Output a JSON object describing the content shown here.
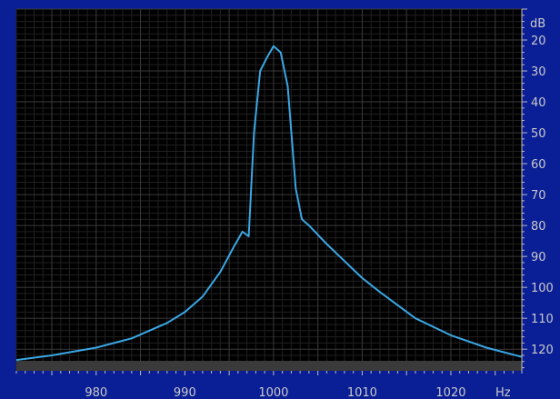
{
  "chart_data": {
    "type": "line",
    "title": "",
    "xlabel": "Hz",
    "ylabel": "dB",
    "x_unit": "Hz",
    "y_unit": "dB",
    "xlim": [
      971,
      1028
    ],
    "ylim": [
      10,
      127
    ],
    "y_inverted": true,
    "x_ticks": [
      980,
      990,
      1000,
      1010,
      1020
    ],
    "y_ticks": [
      20,
      30,
      40,
      50,
      60,
      70,
      80,
      90,
      100,
      110,
      120
    ],
    "grid": true,
    "colors": {
      "background": "#0a1f96",
      "plot_background": "#000000",
      "grid": "#3b3b3b",
      "line": "#3aa7e4",
      "text": "#c9c9c9"
    },
    "series": [
      {
        "x": [
          971,
          975,
          980,
          984,
          988,
          990,
          992,
          994,
          995.5,
          996.5,
          997.2,
          997.8,
          998.5,
          999.2,
          1000,
          1000.8,
          1001.6,
          1002.5,
          1003.2,
          1004,
          1006,
          1008,
          1010,
          1012,
          1016,
          1020,
          1024,
          1028
        ],
        "y": [
          123.5,
          122,
          119.5,
          116.5,
          111.5,
          108,
          103,
          95,
          87,
          82,
          83.5,
          50,
          30,
          26,
          22,
          24,
          35,
          68,
          78,
          80,
          86,
          91.5,
          97,
          101.5,
          110,
          115.5,
          119.5,
          122.5
        ]
      }
    ]
  }
}
